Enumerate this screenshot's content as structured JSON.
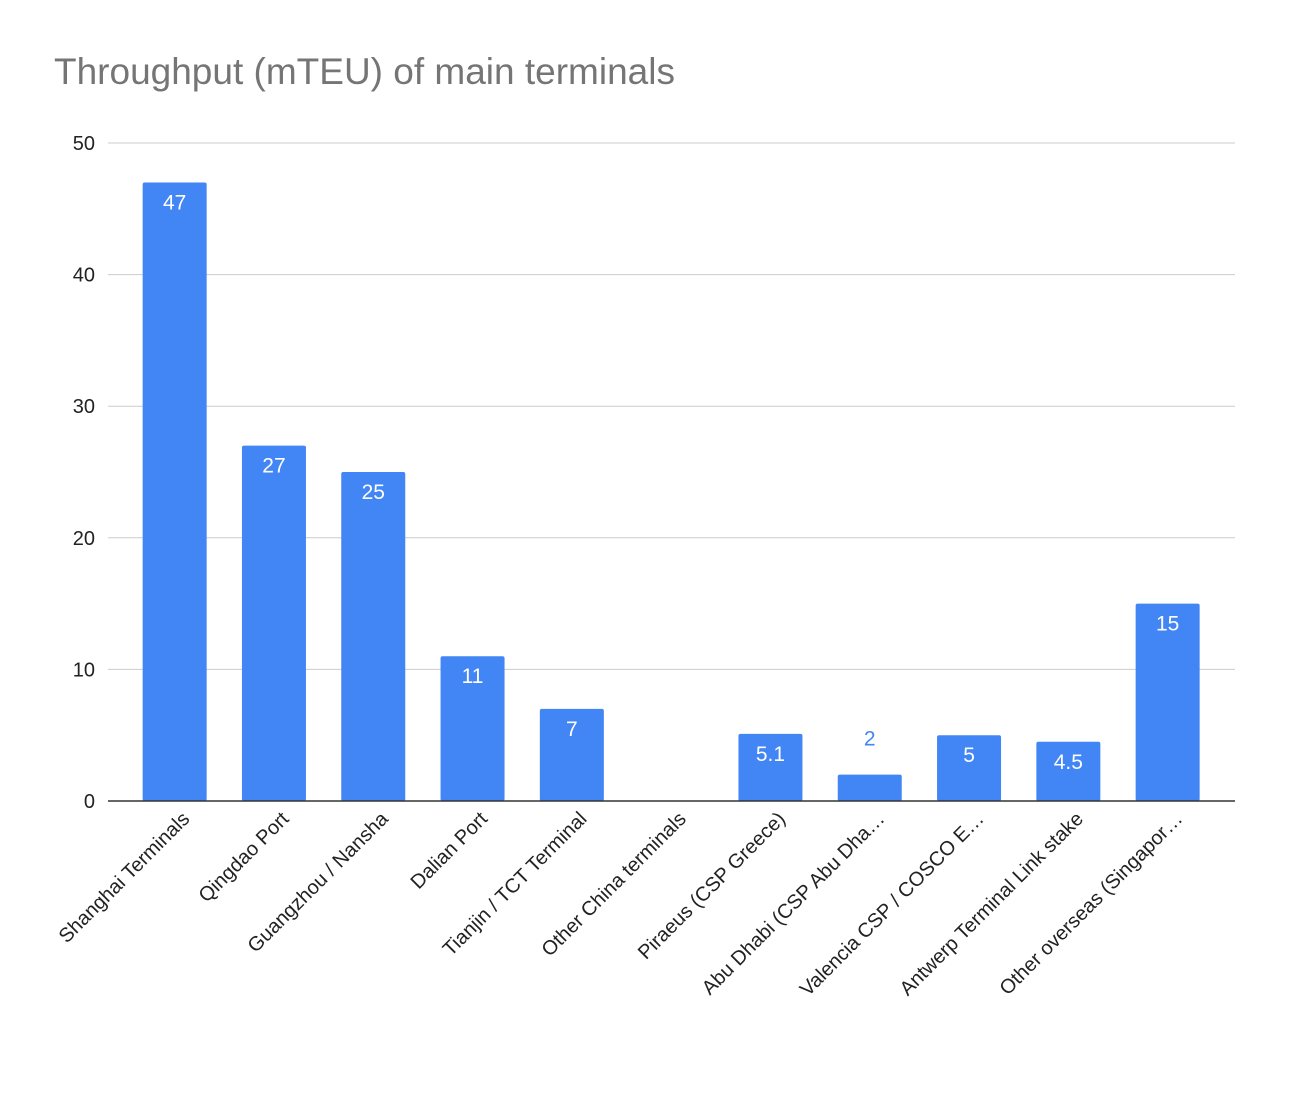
{
  "chart_data": {
    "type": "bar",
    "title": "Throughput (mTEU) of main terminals",
    "xlabel": "",
    "ylabel": "",
    "ylim": [
      0,
      50
    ],
    "yticks": [
      0,
      10,
      20,
      30,
      40,
      50
    ],
    "grid": true,
    "legend": "none",
    "categories": [
      "Shanghai Terminals",
      "Qingdao Port",
      "Guangzhou / Nansha",
      "Dalian Port",
      "Tianjin / TCT Terminal",
      "Other China terminals",
      "Piraeus (CSP Greece)",
      "Abu Dhabi (CSP Abu Dha…",
      "Valencia CSP / COSCO E…",
      "Antwerp Terminal Link stake",
      "Other overseas (Singapor…"
    ],
    "values": [
      47,
      27,
      25,
      11,
      7,
      null,
      5.1,
      2,
      5,
      4.5,
      15
    ],
    "data_labels": [
      "47",
      "27",
      "25",
      "11",
      "7",
      "",
      "5.1",
      "2",
      "5",
      "4.5",
      "15"
    ],
    "colors": {
      "bar": "#4285f4",
      "label_inside": "#ffffff",
      "label_outside": "#4285f4"
    }
  }
}
